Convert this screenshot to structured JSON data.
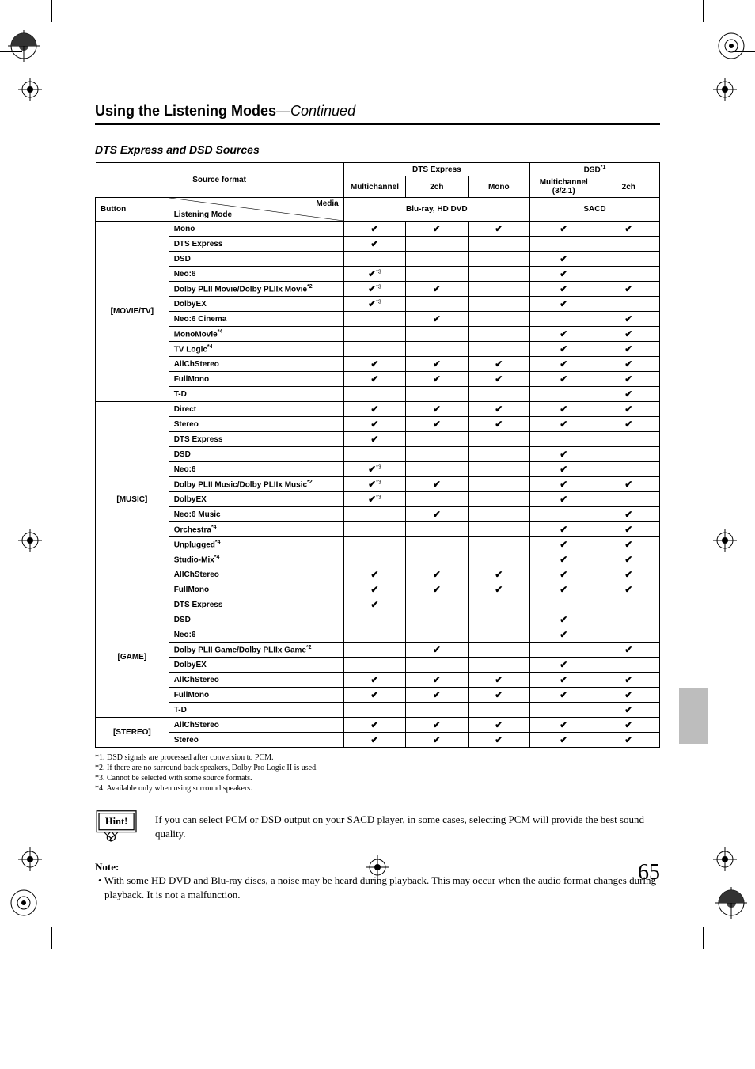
{
  "page": {
    "title_main": "Using the Listening Modes",
    "title_cont": "—Continued",
    "section": "DTS Express and DSD Sources",
    "number": "65"
  },
  "headers": {
    "source_format": "Source format",
    "button": "Button",
    "listening_mode": "Listening Mode",
    "media": "Media",
    "dts_express": "DTS Express",
    "dsd": "DSD",
    "dsd_sup": "*1",
    "multichannel": "Multichannel",
    "multichannel321": "Multichannel\n(3/2.1)",
    "twoch": "2ch",
    "mono": "Mono",
    "bluray": "Blu-ray, HD DVD",
    "sacd": "SACD"
  },
  "check": "✔",
  "sup3": "*3",
  "groups": [
    {
      "button": "[MOVIE/TV]",
      "rows": [
        {
          "mode": "Mono",
          "c": [
            "1",
            "1",
            "1",
            "1",
            "1"
          ]
        },
        {
          "mode": "DTS Express",
          "c": [
            "1",
            "",
            "",
            "",
            ""
          ]
        },
        {
          "mode": "DSD",
          "c": [
            "",
            "",
            "",
            "1",
            ""
          ]
        },
        {
          "mode": "Neo:6",
          "c": [
            "3",
            "",
            "",
            "1",
            ""
          ]
        },
        {
          "mode": "Dolby PLII Movie/Dolby PLIIx Movie",
          "sup": "*2",
          "c": [
            "3",
            "1",
            "",
            "1",
            "1"
          ]
        },
        {
          "mode": "DolbyEX",
          "c": [
            "3",
            "",
            "",
            "1",
            ""
          ]
        },
        {
          "mode": "Neo:6 Cinema",
          "c": [
            "",
            "1",
            "",
            "",
            "1"
          ]
        },
        {
          "mode": "MonoMovie",
          "sup": "*4",
          "c": [
            "",
            "",
            "",
            "1",
            "1"
          ]
        },
        {
          "mode": "TV Logic",
          "sup": "*4",
          "c": [
            "",
            "",
            "",
            "1",
            "1"
          ]
        },
        {
          "mode": "AllChStereo",
          "c": [
            "1",
            "1",
            "1",
            "1",
            "1"
          ]
        },
        {
          "mode": "FullMono",
          "c": [
            "1",
            "1",
            "1",
            "1",
            "1"
          ]
        },
        {
          "mode": "T-D",
          "c": [
            "",
            "",
            "",
            "",
            "1"
          ]
        }
      ]
    },
    {
      "button": "[MUSIC]",
      "rows": [
        {
          "mode": "Direct",
          "c": [
            "1",
            "1",
            "1",
            "1",
            "1"
          ]
        },
        {
          "mode": "Stereo",
          "c": [
            "1",
            "1",
            "1",
            "1",
            "1"
          ]
        },
        {
          "mode": "DTS Express",
          "c": [
            "1",
            "",
            "",
            "",
            ""
          ]
        },
        {
          "mode": "DSD",
          "c": [
            "",
            "",
            "",
            "1",
            ""
          ]
        },
        {
          "mode": "Neo:6",
          "c": [
            "3",
            "",
            "",
            "1",
            ""
          ]
        },
        {
          "mode": "Dolby PLII Music/Dolby PLIIx Music",
          "sup": "*2",
          "c": [
            "3",
            "1",
            "",
            "1",
            "1"
          ]
        },
        {
          "mode": "DolbyEX",
          "c": [
            "3",
            "",
            "",
            "1",
            ""
          ]
        },
        {
          "mode": "Neo:6 Music",
          "c": [
            "",
            "1",
            "",
            "",
            "1"
          ]
        },
        {
          "mode": "Orchestra",
          "sup": "*4",
          "c": [
            "",
            "",
            "",
            "1",
            "1"
          ]
        },
        {
          "mode": "Unplugged",
          "sup": "*4",
          "c": [
            "",
            "",
            "",
            "1",
            "1"
          ]
        },
        {
          "mode": "Studio-Mix",
          "sup": "*4",
          "c": [
            "",
            "",
            "",
            "1",
            "1"
          ]
        },
        {
          "mode": "AllChStereo",
          "c": [
            "1",
            "1",
            "1",
            "1",
            "1"
          ]
        },
        {
          "mode": "FullMono",
          "c": [
            "1",
            "1",
            "1",
            "1",
            "1"
          ]
        }
      ]
    },
    {
      "button": "[GAME]",
      "rows": [
        {
          "mode": "DTS Express",
          "c": [
            "1",
            "",
            "",
            "",
            ""
          ]
        },
        {
          "mode": "DSD",
          "c": [
            "",
            "",
            "",
            "1",
            ""
          ]
        },
        {
          "mode": "Neo:6",
          "c": [
            "",
            "",
            "",
            "1",
            ""
          ]
        },
        {
          "mode": "Dolby PLII Game/Dolby PLIIx Game",
          "sup": "*2",
          "c": [
            "",
            "1",
            "",
            "",
            "1"
          ]
        },
        {
          "mode": "DolbyEX",
          "c": [
            "",
            "",
            "",
            "1",
            ""
          ]
        },
        {
          "mode": "AllChStereo",
          "c": [
            "1",
            "1",
            "1",
            "1",
            "1"
          ]
        },
        {
          "mode": "FullMono",
          "c": [
            "1",
            "1",
            "1",
            "1",
            "1"
          ]
        },
        {
          "mode": "T-D",
          "c": [
            "",
            "",
            "",
            "",
            "1"
          ]
        }
      ]
    },
    {
      "button": "[STEREO]",
      "rows": [
        {
          "mode": "AllChStereo",
          "c": [
            "1",
            "1",
            "1",
            "1",
            "1"
          ]
        },
        {
          "mode": "Stereo",
          "c": [
            "1",
            "1",
            "1",
            "1",
            "1"
          ]
        }
      ]
    }
  ],
  "footnotes": [
    "*1.  DSD signals are processed after conversion to PCM.",
    "*2.  If there are no surround back speakers, Dolby Pro Logic II is used.",
    "*3.  Cannot be selected with some source formats.",
    "*4.  Available only when using surround speakers."
  ],
  "hint": {
    "label": "Hint!",
    "text": "If you can select PCM or DSD output on your SACD player, in some cases, selecting PCM will provide the best sound quality."
  },
  "note": {
    "heading": "Note:",
    "body": "•  With some HD DVD and Blu-ray discs, a noise may be heard during playback. This may occur when the audio format changes during playback. It is not a malfunction."
  }
}
